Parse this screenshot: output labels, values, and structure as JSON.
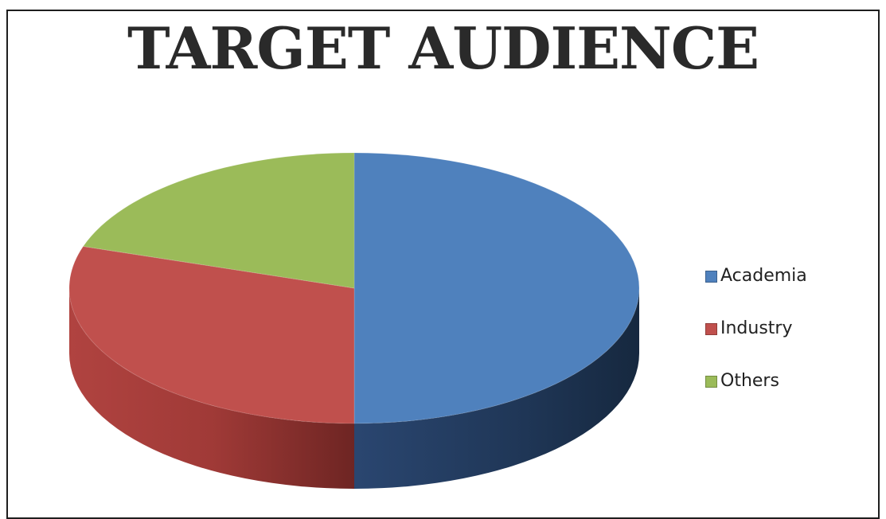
{
  "chart_data": {
    "type": "pie",
    "title": "TARGET AUDIENCE",
    "style": "3d",
    "legend_position": "right",
    "slices": [
      {
        "label": "Academia",
        "value": 50,
        "color": "#4F81BD",
        "side_color": "#243B5A"
      },
      {
        "label": "Industry",
        "value": 30,
        "color": "#C0504D",
        "side_color": "#7A2A28"
      },
      {
        "label": "Others",
        "value": 20,
        "color": "#9BBB59",
        "side_color": "#5E7530"
      }
    ]
  }
}
